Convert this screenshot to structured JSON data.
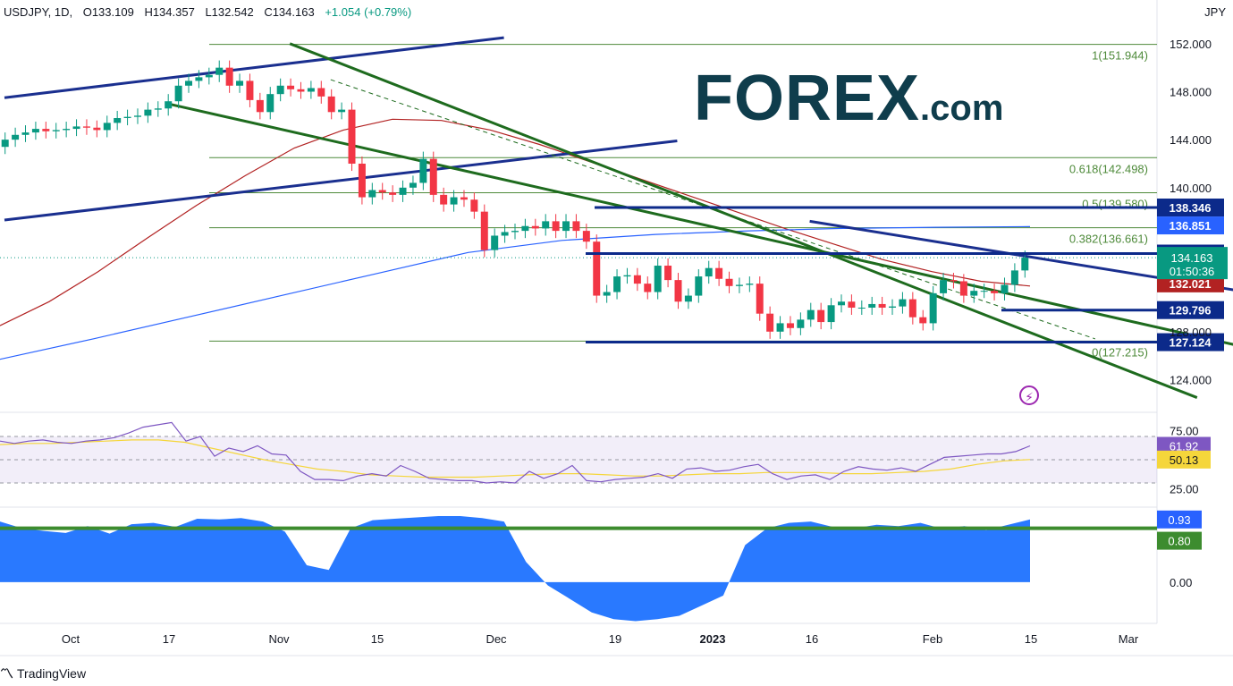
{
  "header": {
    "symbol": "USDJPY, 1D,",
    "open": "O133.109",
    "high": "H134.357",
    "low": "L132.542",
    "close": "C134.163",
    "change": "+1.054 (+0.79%)"
  },
  "currency": "JPY",
  "logo": {
    "brand": "FOREX",
    "suffix": ".com"
  },
  "footer": {
    "brand": "TradingView"
  },
  "colors": {
    "up": "#089981",
    "down": "#f23645",
    "trend_blue": "#1a2f8f",
    "trend_green": "#1e6b1e",
    "ma_red": "#b22222",
    "ma_blue": "#2962ff",
    "rsi": "#7e57c2",
    "rsi_ma": "#f5d63b",
    "area": "#2979ff",
    "level_green": "#3d8c2f"
  },
  "chart_data": [
    {
      "type": "candlestick",
      "pane": "price",
      "ylim": [
        121.5,
        154
      ],
      "y_ticks": [
        "152.000",
        "148.000",
        "144.000",
        "140.000",
        "128.000",
        "124.000"
      ],
      "x_tick_labels": [
        "Oct",
        "17",
        "Nov",
        "15",
        "Dec",
        "19",
        "2023",
        "16",
        "Feb",
        "15",
        "Mar"
      ],
      "series_close": [
        144.0,
        144.4,
        144.6,
        144.9,
        144.7,
        144.8,
        144.9,
        145.1,
        145.0,
        144.8,
        145.4,
        145.8,
        145.9,
        146.0,
        146.5,
        146.6,
        147.2,
        148.5,
        148.9,
        149.2,
        149.4,
        150.0,
        148.5,
        148.9,
        147.3,
        146.3,
        147.8,
        148.5,
        148.2,
        148.0,
        148.3,
        147.6,
        146.3,
        146.5,
        142.0,
        139.2,
        139.8,
        139.6,
        139.4,
        140.0,
        140.4,
        142.4,
        139.4,
        138.6,
        139.2,
        139.0,
        138.0,
        134.8,
        136.0,
        136.3,
        136.4,
        136.8,
        136.6,
        137.2,
        136.4,
        137.2,
        136.4,
        135.5,
        131.0,
        131.3,
        132.6,
        132.7,
        132.0,
        131.3,
        133.5,
        132.3,
        130.5,
        131.0,
        132.6,
        133.3,
        132.4,
        131.8,
        131.9,
        132.0,
        129.5,
        128.0,
        128.7,
        128.3,
        129.0,
        129.8,
        128.8,
        130.2,
        130.5,
        130.0,
        130.0,
        130.3,
        130.0,
        130.1,
        130.7,
        129.2,
        128.7,
        131.2,
        132.3,
        132.2,
        131.0,
        131.4,
        131.4,
        131.2,
        131.9,
        133.1,
        134.163
      ],
      "last_price": "134.163",
      "countdown": "01:50:36"
    },
    {
      "type": "line",
      "pane": "price",
      "series": [
        {
          "kind": "moving-average-red",
          "start_index": 0,
          "values": [
            128.5,
            130.5,
            133.0,
            135.8,
            138.5,
            141.0,
            143.3,
            144.8,
            145.7,
            145.6,
            144.8,
            143.6,
            142.2,
            140.8,
            139.4,
            138.0,
            136.6,
            135.3,
            134.0,
            133.0,
            132.2,
            131.8
          ]
        },
        {
          "kind": "moving-average-blue",
          "start_index": 0,
          "values": [
            125.7,
            127.4,
            129.2,
            131.0,
            132.8,
            134.6,
            135.6,
            136.1,
            136.4,
            136.6,
            136.7,
            136.75
          ]
        }
      ]
    },
    {
      "type": "line",
      "pane": "price",
      "kind": "trendlines",
      "lines": [
        {
          "color": "trend_blue",
          "from": [
            0,
            147.5
          ],
          "to": [
            49,
            152.5
          ]
        },
        {
          "color": "trend_blue",
          "from": [
            0,
            137.3
          ],
          "to": [
            66,
            143.9
          ]
        },
        {
          "color": "trend_green",
          "from": [
            28,
            152.0
          ],
          "to": [
            117,
            122.5
          ]
        },
        {
          "color": "trend_green",
          "from": [
            16,
            147.0
          ],
          "to": [
            128,
            125.5
          ]
        },
        {
          "color": "trend_blue",
          "from": [
            79,
            137.2
          ],
          "to": [
            151,
            127.3
          ]
        },
        {
          "color": "trend_green-dashed",
          "from": [
            32,
            149.0
          ],
          "to": [
            107,
            127.4
          ]
        }
      ]
    },
    {
      "type": "line",
      "pane": "price",
      "kind": "fibonacci",
      "levels": [
        {
          "label": "1(151.944)",
          "value": 151.944
        },
        {
          "label": "0.618(142.498)",
          "value": 142.498
        },
        {
          "label": "0.5(139.580)",
          "value": 139.58
        },
        {
          "label": "0.382(136.661)",
          "value": 136.661
        },
        {
          "label": "0(127.215)",
          "value": 127.215
        }
      ]
    },
    {
      "type": "line",
      "pane": "price",
      "kind": "horizontal-levels",
      "levels": [
        {
          "label": "138.346",
          "value": 138.346,
          "style": "navy"
        },
        {
          "label": "136.851",
          "value": 136.851,
          "style": "blue"
        },
        {
          "label": "134.507",
          "value": 134.507,
          "style": "navy"
        },
        {
          "label": "132.021",
          "value": 132.021,
          "style": "red"
        },
        {
          "label": "129.796",
          "value": 129.796,
          "style": "navy"
        },
        {
          "label": "127.124",
          "value": 127.124,
          "style": "navy"
        }
      ]
    },
    {
      "type": "line",
      "pane": "rsi",
      "ylim": [
        10,
        90
      ],
      "y_ticks": [
        "75.00",
        "25.00"
      ],
      "bands": [
        70,
        50,
        30
      ],
      "series": [
        {
          "kind": "rsi",
          "label": "61.92",
          "values": [
            66,
            64,
            66,
            67,
            65,
            64,
            66,
            67,
            69,
            73,
            78,
            80,
            82,
            66,
            70,
            53,
            60,
            57,
            62,
            55,
            54,
            40,
            33,
            33,
            32,
            36,
            38,
            36,
            45,
            40,
            34,
            33,
            32,
            32,
            30,
            31,
            30,
            40,
            34,
            38,
            45,
            32,
            31,
            33,
            34,
            35,
            38,
            34,
            42,
            43,
            40,
            41,
            44,
            46,
            38,
            33,
            36,
            37,
            33,
            40,
            44,
            42,
            41,
            43,
            40,
            46,
            52,
            53,
            54,
            55,
            55,
            57,
            61.92
          ]
        },
        {
          "kind": "rsi-ma",
          "label": "50.13",
          "values": [
            63,
            64,
            64,
            65,
            66,
            67,
            67,
            65,
            60,
            55,
            50,
            46,
            42,
            40,
            37,
            36,
            35,
            35,
            35,
            36,
            37,
            38,
            38,
            37,
            36,
            36,
            37,
            38,
            38,
            39,
            39,
            39,
            38,
            38,
            39,
            40,
            42,
            46,
            49,
            50.13
          ]
        }
      ]
    },
    {
      "type": "area",
      "pane": "correlation",
      "ylim": [
        -0.6,
        1.1
      ],
      "y_ticks": [
        "0.00"
      ],
      "series": [
        {
          "kind": "correlation",
          "label": "0.93",
          "values": [
            0.9,
            0.8,
            0.76,
            0.73,
            0.83,
            0.72,
            0.86,
            0.88,
            0.82,
            0.94,
            0.93,
            0.95,
            0.9,
            0.75,
            0.25,
            0.18,
            0.8,
            0.92,
            0.94,
            0.96,
            0.98,
            0.98,
            0.95,
            0.9,
            0.3,
            -0.05,
            -0.25,
            -0.45,
            -0.55,
            -0.58,
            -0.55,
            -0.5,
            -0.35,
            -0.2,
            0.55,
            0.8,
            0.88,
            0.9,
            0.82,
            0.8,
            0.85,
            0.83,
            0.88,
            0.79,
            0.83,
            0.77,
            0.85,
            0.93
          ]
        }
      ],
      "level": {
        "label": "0.80",
        "value": 0.8
      }
    }
  ]
}
